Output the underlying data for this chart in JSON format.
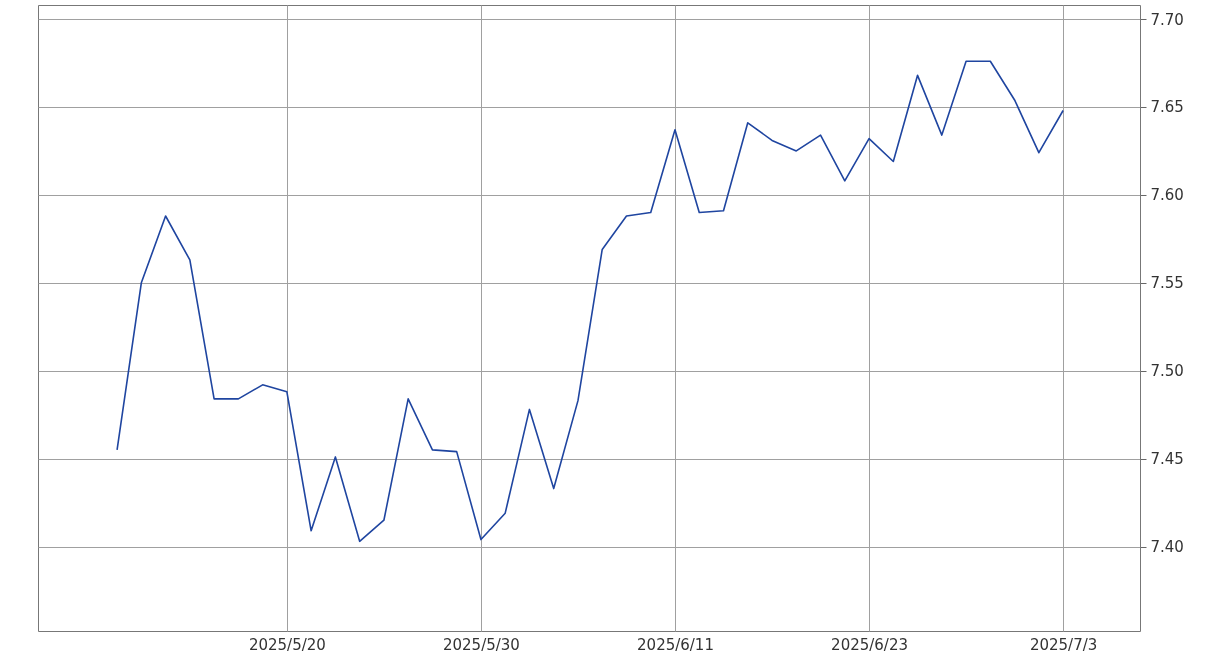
{
  "chart_data": {
    "type": "line",
    "categories": [
      null,
      null,
      null,
      null,
      null,
      null,
      null,
      "2025/5/20",
      null,
      null,
      null,
      null,
      null,
      null,
      null,
      "2025/5/30",
      null,
      null,
      null,
      null,
      null,
      null,
      null,
      "2025/6/11",
      null,
      null,
      null,
      null,
      null,
      null,
      null,
      "2025/6/23",
      null,
      null,
      null,
      null,
      null,
      null,
      null,
      "2025/7/3"
    ],
    "series": [
      {
        "color": "#1f45a0",
        "values": [
          7.455,
          7.55,
          7.588,
          7.563,
          7.484,
          7.484,
          7.492,
          7.488,
          7.409,
          7.451,
          7.403,
          7.415,
          7.484,
          7.455,
          7.454,
          7.404,
          7.419,
          7.478,
          7.433,
          7.483,
          7.569,
          7.588,
          7.59,
          7.637,
          7.59,
          7.591,
          7.641,
          7.631,
          7.625,
          7.634,
          7.608,
          7.632,
          7.619,
          7.668,
          7.634,
          7.676,
          7.676,
          7.654,
          7.624,
          7.648
        ]
      }
    ],
    "ylim": [
      7.352,
      7.708
    ],
    "yticks": [
      {
        "value": 7.4,
        "label": "7.40"
      },
      {
        "value": 7.45,
        "label": "7.45"
      },
      {
        "value": 7.5,
        "label": "7.50"
      },
      {
        "value": 7.55,
        "label": "7.55"
      },
      {
        "value": 7.6,
        "label": "7.60"
      },
      {
        "value": 7.65,
        "label": "7.65"
      },
      {
        "value": 7.7,
        "label": "7.70"
      }
    ],
    "grid": true,
    "marker": "none",
    "line_style": "solid"
  }
}
